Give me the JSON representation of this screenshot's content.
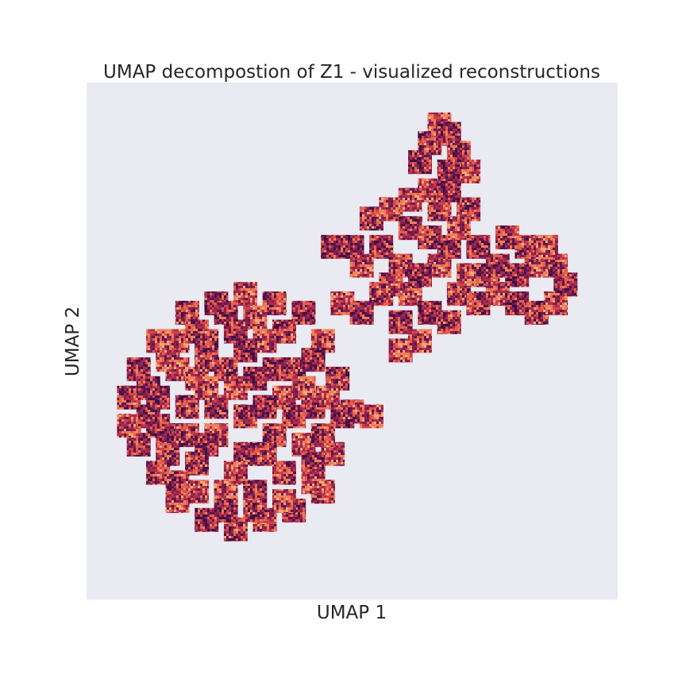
{
  "chart_data": {
    "type": "scatter",
    "title": "UMAP decompostion of Z1 - visualized reconstructions",
    "xlabel": "UMAP 1",
    "ylabel": "UMAP 2",
    "xlim": [
      0,
      100
    ],
    "ylim": [
      0,
      100
    ],
    "grid": false,
    "legend": "none",
    "marker": "reconstruction-image-tile",
    "colors": {
      "background": "#eaeaf2",
      "tile_palette": [
        "#3b0f45",
        "#5c1650",
        "#84204f",
        "#ad2c4d",
        "#d0434a",
        "#e6604c",
        "#f07f56",
        "#f6a777"
      ]
    },
    "series": [
      {
        "values": [
          {
            "x": 6,
            "y": 28
          },
          {
            "x": 10,
            "y": 22
          },
          {
            "x": 14,
            "y": 16
          },
          {
            "x": 20,
            "y": 12
          },
          {
            "x": 26,
            "y": 10
          },
          {
            "x": 32,
            "y": 12
          },
          {
            "x": 38,
            "y": 14
          },
          {
            "x": 44,
            "y": 18
          },
          {
            "x": 46,
            "y": 26
          },
          {
            "x": 48,
            "y": 34
          },
          {
            "x": 47,
            "y": 42
          },
          {
            "x": 44,
            "y": 50
          },
          {
            "x": 40,
            "y": 56
          },
          {
            "x": 34,
            "y": 58
          },
          {
            "x": 28,
            "y": 60
          },
          {
            "x": 22,
            "y": 58
          },
          {
            "x": 16,
            "y": 56
          },
          {
            "x": 10,
            "y": 50
          },
          {
            "x": 6,
            "y": 44
          },
          {
            "x": 4,
            "y": 38
          },
          {
            "x": 4,
            "y": 32
          },
          {
            "x": 12,
            "y": 30
          },
          {
            "x": 18,
            "y": 24
          },
          {
            "x": 24,
            "y": 18
          },
          {
            "x": 30,
            "y": 18
          },
          {
            "x": 36,
            "y": 22
          },
          {
            "x": 40,
            "y": 28
          },
          {
            "x": 42,
            "y": 36
          },
          {
            "x": 38,
            "y": 44
          },
          {
            "x": 32,
            "y": 50
          },
          {
            "x": 26,
            "y": 52
          },
          {
            "x": 20,
            "y": 50
          },
          {
            "x": 14,
            "y": 44
          },
          {
            "x": 10,
            "y": 38
          },
          {
            "x": 16,
            "y": 36
          },
          {
            "x": 22,
            "y": 30
          },
          {
            "x": 28,
            "y": 26
          },
          {
            "x": 34,
            "y": 30
          },
          {
            "x": 36,
            "y": 38
          },
          {
            "x": 30,
            "y": 42
          },
          {
            "x": 24,
            "y": 44
          },
          {
            "x": 18,
            "y": 42
          },
          {
            "x": 22,
            "y": 36
          },
          {
            "x": 28,
            "y": 34
          },
          {
            "x": 26,
            "y": 40
          },
          {
            "x": 32,
            "y": 36
          },
          {
            "x": 20,
            "y": 46
          },
          {
            "x": 14,
            "y": 50
          },
          {
            "x": 8,
            "y": 34
          },
          {
            "x": 12,
            "y": 26
          },
          {
            "x": 18,
            "y": 18
          },
          {
            "x": 24,
            "y": 14
          },
          {
            "x": 30,
            "y": 14
          },
          {
            "x": 36,
            "y": 16
          },
          {
            "x": 42,
            "y": 24
          },
          {
            "x": 44,
            "y": 30
          },
          {
            "x": 45,
            "y": 38
          },
          {
            "x": 42,
            "y": 46
          },
          {
            "x": 36,
            "y": 52
          },
          {
            "x": 30,
            "y": 55
          },
          {
            "x": 24,
            "y": 56
          },
          {
            "x": 18,
            "y": 52
          },
          {
            "x": 12,
            "y": 46
          },
          {
            "x": 8,
            "y": 40
          },
          {
            "x": 16,
            "y": 30
          },
          {
            "x": 20,
            "y": 40
          },
          {
            "x": 34,
            "y": 44
          },
          {
            "x": 38,
            "y": 34
          },
          {
            "x": 26,
            "y": 22
          },
          {
            "x": 20,
            "y": 28
          },
          {
            "x": 32,
            "y": 26
          },
          {
            "x": 40,
            "y": 40
          },
          {
            "x": 10,
            "y": 32
          },
          {
            "x": 14,
            "y": 20
          },
          {
            "x": 42,
            "y": 20
          },
          {
            "x": 28,
            "y": 48
          },
          {
            "x": 50,
            "y": 35
          },
          {
            "x": 54,
            "y": 34
          }
        ]
      },
      {
        "values": [
          {
            "x": 56,
            "y": 70
          },
          {
            "x": 60,
            "y": 66
          },
          {
            "x": 62,
            "y": 60
          },
          {
            "x": 66,
            "y": 56
          },
          {
            "x": 70,
            "y": 54
          },
          {
            "x": 64,
            "y": 50
          },
          {
            "x": 60,
            "y": 54
          },
          {
            "x": 58,
            "y": 62
          },
          {
            "x": 52,
            "y": 66
          },
          {
            "x": 50,
            "y": 70
          },
          {
            "x": 54,
            "y": 76
          },
          {
            "x": 58,
            "y": 78
          },
          {
            "x": 62,
            "y": 74
          },
          {
            "x": 66,
            "y": 72
          },
          {
            "x": 68,
            "y": 66
          },
          {
            "x": 64,
            "y": 64
          },
          {
            "x": 72,
            "y": 60
          },
          {
            "x": 74,
            "y": 64
          },
          {
            "x": 70,
            "y": 70
          },
          {
            "x": 68,
            "y": 78
          },
          {
            "x": 66,
            "y": 82
          },
          {
            "x": 64,
            "y": 88
          },
          {
            "x": 66,
            "y": 92
          },
          {
            "x": 68,
            "y": 96
          },
          {
            "x": 70,
            "y": 94
          },
          {
            "x": 72,
            "y": 90
          },
          {
            "x": 74,
            "y": 86
          },
          {
            "x": 70,
            "y": 86
          },
          {
            "x": 74,
            "y": 78
          },
          {
            "x": 72,
            "y": 74
          },
          {
            "x": 76,
            "y": 70
          },
          {
            "x": 78,
            "y": 64
          },
          {
            "x": 80,
            "y": 60
          },
          {
            "x": 84,
            "y": 58
          },
          {
            "x": 88,
            "y": 56
          },
          {
            "x": 92,
            "y": 58
          },
          {
            "x": 94,
            "y": 62
          },
          {
            "x": 92,
            "y": 66
          },
          {
            "x": 88,
            "y": 66
          },
          {
            "x": 84,
            "y": 64
          },
          {
            "x": 86,
            "y": 70
          },
          {
            "x": 90,
            "y": 70
          },
          {
            "x": 80,
            "y": 66
          },
          {
            "x": 76,
            "y": 58
          },
          {
            "x": 48,
            "y": 58
          },
          {
            "x": 46,
            "y": 70
          },
          {
            "x": 56,
            "y": 60
          },
          {
            "x": 60,
            "y": 48
          },
          {
            "x": 52,
            "y": 56
          },
          {
            "x": 82,
            "y": 72
          },
          {
            "x": 62,
            "y": 80
          },
          {
            "x": 70,
            "y": 82
          }
        ]
      }
    ]
  }
}
